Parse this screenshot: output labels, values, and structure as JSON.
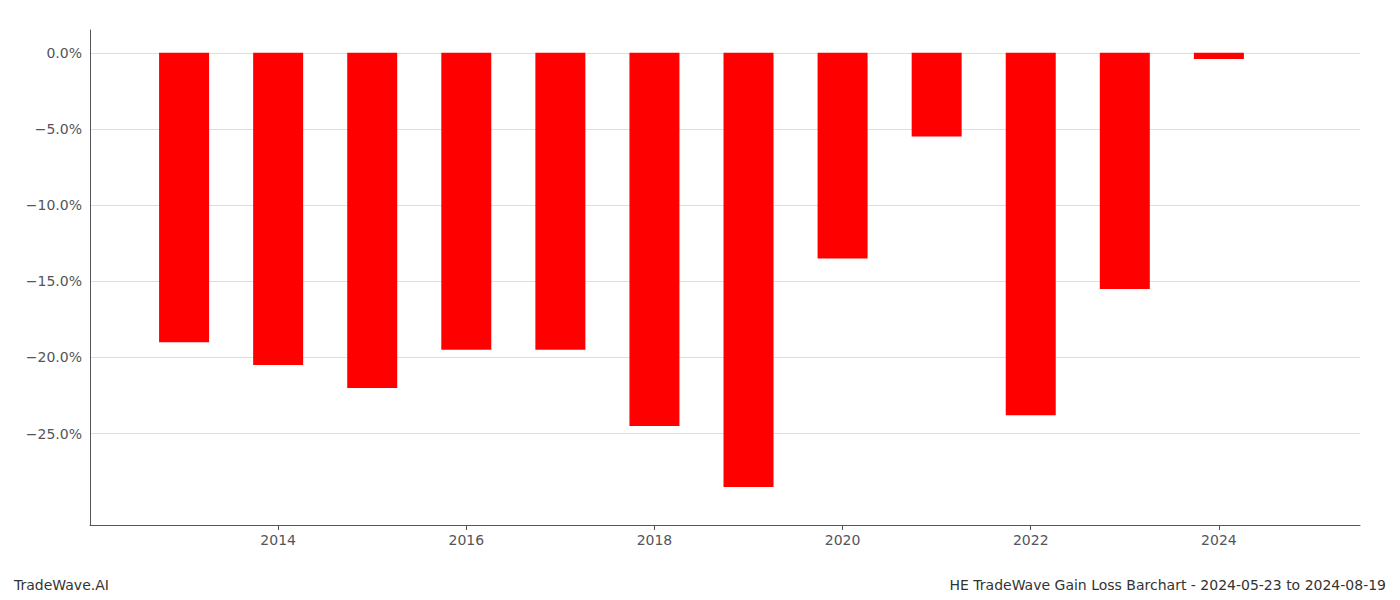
{
  "chart_data": {
    "type": "bar",
    "x": [
      2013,
      2014,
      2015,
      2016,
      2017,
      2018,
      2019,
      2020,
      2021,
      2022,
      2023,
      2024
    ],
    "values": [
      -19.0,
      -20.5,
      -22.0,
      -19.5,
      -19.5,
      -24.5,
      -28.5,
      -13.5,
      -5.5,
      -23.8,
      -15.5,
      -0.4
    ],
    "color": "#ff0000",
    "xlim": [
      2012.0,
      2025.5
    ],
    "xticks": [
      2014,
      2016,
      2018,
      2020,
      2022,
      2024
    ],
    "ylim": [
      -31,
      1.5
    ],
    "yticks": [
      {
        "value": 0,
        "label": "0.0%"
      },
      {
        "value": -5,
        "label": "−5.0%"
      },
      {
        "value": -10,
        "label": "−10.0%"
      },
      {
        "value": -15,
        "label": "−15.0%"
      },
      {
        "value": -20,
        "label": "−20.0%"
      },
      {
        "value": -25,
        "label": "−25.0%"
      }
    ],
    "grid": true,
    "annotations": [
      "TradeWave.AI",
      "HE TradeWave Gain Loss Barchart - 2024-05-23 to 2024-08-19"
    ]
  }
}
